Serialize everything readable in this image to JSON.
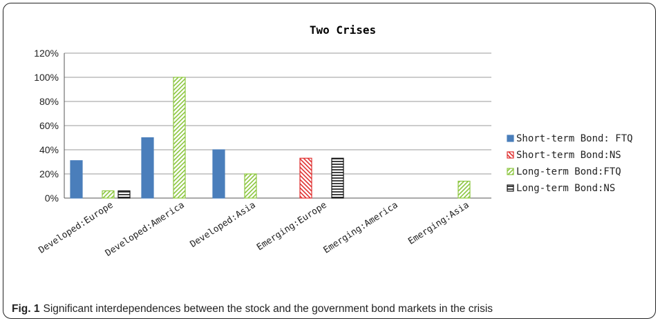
{
  "chart_data": {
    "type": "bar",
    "title": "Two Crises",
    "categories": [
      "Developed:Europe",
      "Developed:America",
      "Developed:Asia",
      "Emerging:Europe",
      "Emerging:America",
      "Emerging:Asia"
    ],
    "series": [
      {
        "name": "Short-term Bond: FTQ",
        "values": [
          31,
          50,
          40,
          0,
          0,
          0
        ],
        "color": "#4a7ebb",
        "pattern": "solid"
      },
      {
        "name": "Short-term Bond:NS",
        "values": [
          0,
          0,
          0,
          33,
          0,
          0
        ],
        "color": "#e03030",
        "pattern": "diagonal-down"
      },
      {
        "name": "Long-term Bond:FTQ",
        "values": [
          6,
          100,
          20,
          0,
          0,
          14
        ],
        "color": "#8cc63f",
        "pattern": "diagonal-up"
      },
      {
        "name": "Long-term Bond:NS",
        "values": [
          6,
          0,
          0,
          33,
          0,
          0
        ],
        "color": "#111111",
        "pattern": "horizontal"
      }
    ],
    "yticks": [
      "0%",
      "20%",
      "40%",
      "60%",
      "80%",
      "100%",
      "120%"
    ],
    "ylim": [
      0,
      120
    ],
    "legend": "right",
    "grid": true
  },
  "caption": {
    "label": "Fig. 1",
    "text": "Significant interdependences between the stock and the government bond markets in the crisis"
  }
}
